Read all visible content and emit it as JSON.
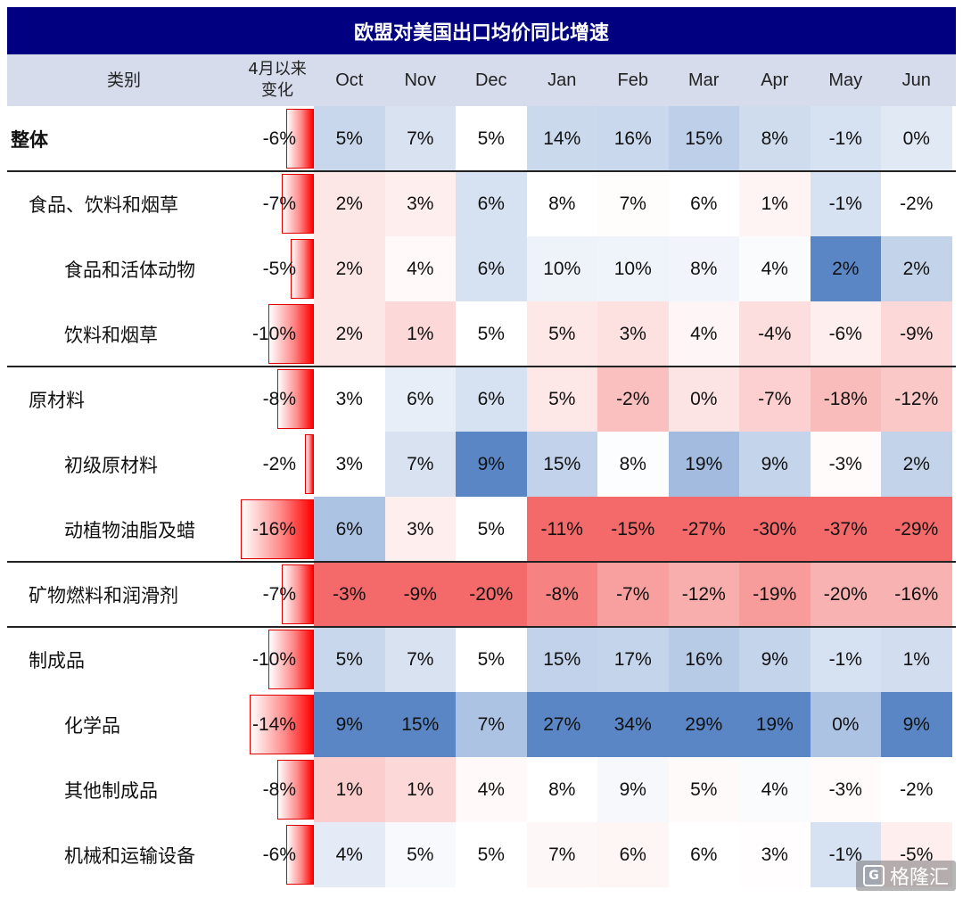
{
  "title": "欧盟对美国出口均价同比增速",
  "header": {
    "category": "类别",
    "change": "4月以来\n变化",
    "months": [
      "Oct",
      "Nov",
      "Dec",
      "Jan",
      "Feb",
      "Mar",
      "Apr",
      "May",
      "Jun"
    ]
  },
  "chart_data": {
    "type": "heatmap",
    "title": "欧盟对美国出口均价同比增速",
    "x": [
      "Oct",
      "Nov",
      "Dec",
      "Jan",
      "Feb",
      "Mar",
      "Apr",
      "May",
      "Jun"
    ],
    "rows": [
      {
        "label": "整体",
        "level": 0,
        "change": -6,
        "change_label": "-6%",
        "values": [
          5,
          7,
          5,
          14,
          16,
          15,
          8,
          -1,
          0
        ],
        "labels": [
          "5%",
          "7%",
          "5%",
          "14%",
          "16%",
          "15%",
          "8%",
          "-1%",
          "0%"
        ]
      },
      {
        "label": "食品、饮料和烟草",
        "level": 1,
        "change": -7,
        "change_label": "-7%",
        "values": [
          2,
          3,
          6,
          8,
          7,
          6,
          1,
          -1,
          -2
        ],
        "labels": [
          "2%",
          "3%",
          "6%",
          "8%",
          "7%",
          "6%",
          "1%",
          "-1%",
          "-2%"
        ]
      },
      {
        "label": "食品和活体动物",
        "level": 2,
        "change": -5,
        "change_label": "-5%",
        "values": [
          2,
          4,
          6,
          10,
          10,
          8,
          4,
          2,
          2
        ],
        "labels": [
          "2%",
          "4%",
          "6%",
          "10%",
          "10%",
          "8%",
          "4%",
          "2%",
          "2%"
        ]
      },
      {
        "label": "饮料和烟草",
        "level": 2,
        "change": -10,
        "change_label": "-10%",
        "values": [
          2,
          1,
          5,
          5,
          3,
          4,
          -4,
          -6,
          -9
        ],
        "labels": [
          "2%",
          "1%",
          "5%",
          "5%",
          "3%",
          "4%",
          "-4%",
          "-6%",
          "-9%"
        ]
      },
      {
        "label": "原材料",
        "level": 1,
        "change": -8,
        "change_label": "-8%",
        "values": [
          3,
          6,
          6,
          5,
          -2,
          0,
          -7,
          -18,
          -12
        ],
        "labels": [
          "3%",
          "6%",
          "6%",
          "5%",
          "-2%",
          "0%",
          "-7%",
          "-18%",
          "-12%"
        ]
      },
      {
        "label": "初级原材料",
        "level": 2,
        "change": -2,
        "change_label": "-2%",
        "values": [
          3,
          7,
          9,
          15,
          8,
          19,
          9,
          -3,
          2
        ],
        "labels": [
          "3%",
          "7%",
          "9%",
          "15%",
          "8%",
          "19%",
          "9%",
          "-3%",
          "2%"
        ]
      },
      {
        "label": "动植物油脂及蜡",
        "level": 2,
        "change": -16,
        "change_label": "-16%",
        "values": [
          6,
          3,
          5,
          -11,
          -15,
          -27,
          -30,
          -37,
          -29
        ],
        "labels": [
          "6%",
          "3%",
          "5%",
          "-11%",
          "-15%",
          "-27%",
          "-30%",
          "-37%",
          "-29%"
        ]
      },
      {
        "label": "矿物燃料和润滑剂",
        "level": 1,
        "change": -7,
        "change_label": "-7%",
        "values": [
          -3,
          -9,
          -20,
          -8,
          -7,
          -12,
          -19,
          -20,
          -16
        ],
        "labels": [
          "-3%",
          "-9%",
          "-20%",
          "-8%",
          "-7%",
          "-12%",
          "-19%",
          "-20%",
          "-16%"
        ]
      },
      {
        "label": "制成品",
        "level": 1,
        "change": -10,
        "change_label": "-10%",
        "values": [
          5,
          7,
          5,
          15,
          17,
          16,
          9,
          -1,
          1
        ],
        "labels": [
          "5%",
          "7%",
          "5%",
          "15%",
          "17%",
          "16%",
          "9%",
          "-1%",
          "1%"
        ]
      },
      {
        "label": "化学品",
        "level": 2,
        "change": -14,
        "change_label": "-14%",
        "values": [
          9,
          15,
          7,
          27,
          34,
          29,
          19,
          0,
          9
        ],
        "labels": [
          "9%",
          "15%",
          "7%",
          "27%",
          "34%",
          "29%",
          "19%",
          "0%",
          "9%"
        ]
      },
      {
        "label": "其他制成品",
        "level": 2,
        "change": -8,
        "change_label": "-8%",
        "values": [
          1,
          1,
          4,
          8,
          9,
          5,
          4,
          -3,
          -2
        ],
        "labels": [
          "1%",
          "1%",
          "4%",
          "8%",
          "9%",
          "5%",
          "4%",
          "-3%",
          "-2%"
        ]
      },
      {
        "label": "机械和运输设备",
        "level": 2,
        "change": -6,
        "change_label": "-6%",
        "values": [
          4,
          5,
          5,
          7,
          6,
          6,
          3,
          -1,
          -5
        ],
        "labels": [
          "4%",
          "5%",
          "5%",
          "7%",
          "6%",
          "6%",
          "3%",
          "-1%",
          "-5%"
        ]
      }
    ],
    "group_separators_after_rows": [
      0,
      3,
      6,
      7
    ],
    "change_bar_max": 16,
    "colors": {
      "high": "#5a86c6",
      "mid": "#ffffff",
      "low": "#f46a6a",
      "change_bar": "#ff0000",
      "title_bg": "#000080",
      "header_bg": "#d6dcec"
    }
  },
  "watermark": {
    "icon": "G",
    "text": "格隆汇"
  }
}
